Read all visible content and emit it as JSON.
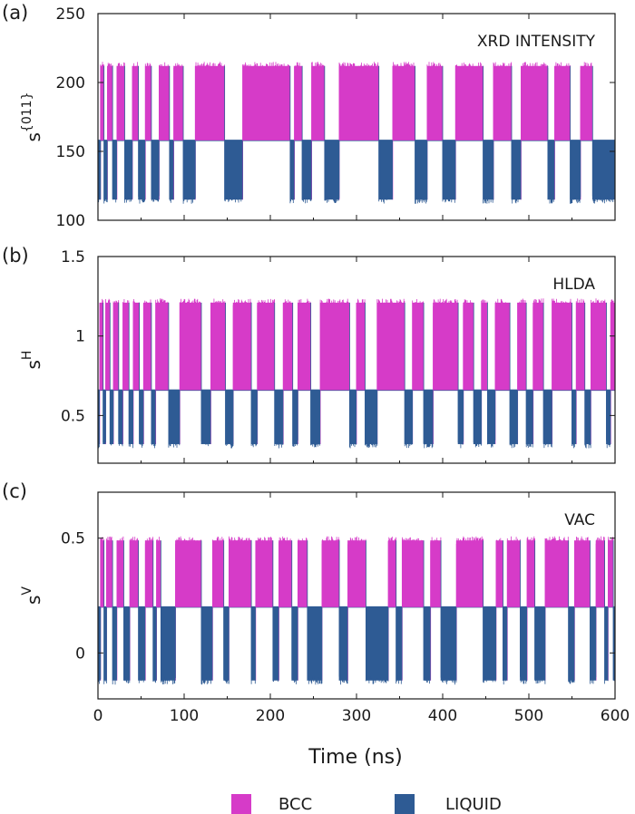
{
  "colors": {
    "bcc": "#d63bc8",
    "liquid": "#2e5b94",
    "axis": "#1a1a1a"
  },
  "xlabel": "Time (ns)",
  "legend": [
    {
      "name": "BCC",
      "color": "#d63bc8"
    },
    {
      "name": "LIQUID",
      "color": "#2e5b94"
    }
  ],
  "chart_data": [
    {
      "type": "area",
      "panel": "(a)",
      "annotation": "XRD INTENSITY",
      "ylabel": {
        "base": "s",
        "sup": "{011}"
      },
      "xlim": [
        0,
        600
      ],
      "ylim": [
        100,
        250
      ],
      "xticks": [
        0,
        100,
        200,
        300,
        400,
        500,
        600
      ],
      "yticks": [
        100,
        150,
        200,
        250
      ],
      "baseline": 158,
      "series": [
        {
          "name": "BCC",
          "level": 212,
          "intervals": [
            [
              3,
              7
            ],
            [
              11,
              17
            ],
            [
              22,
              31
            ],
            [
              40,
              47
            ],
            [
              55,
              62
            ],
            [
              71,
              83
            ],
            [
              88,
              99
            ],
            [
              113,
              147
            ],
            [
              168,
              223
            ],
            [
              228,
              237
            ],
            [
              248,
              263
            ],
            [
              280,
              326
            ],
            [
              342,
              368
            ],
            [
              382,
              400
            ],
            [
              415,
              447
            ],
            [
              459,
              480
            ],
            [
              491,
              522
            ],
            [
              530,
              548
            ],
            [
              560,
              574
            ]
          ]
        },
        {
          "name": "LIQUID",
          "level": 115,
          "intervals": [
            [
              0,
              3
            ],
            [
              7,
              11
            ],
            [
              17,
              22
            ],
            [
              31,
              40
            ],
            [
              47,
              55
            ],
            [
              62,
              71
            ],
            [
              83,
              88
            ],
            [
              99,
              113
            ],
            [
              147,
              168
            ],
            [
              223,
              228
            ],
            [
              237,
              248
            ],
            [
              263,
              280
            ],
            [
              326,
              342
            ],
            [
              368,
              382
            ],
            [
              400,
              415
            ],
            [
              447,
              459
            ],
            [
              480,
              491
            ],
            [
              522,
              530
            ],
            [
              548,
              560
            ],
            [
              574,
              600
            ]
          ]
        }
      ]
    },
    {
      "type": "area",
      "panel": "(b)",
      "annotation": "HLDA",
      "ylabel": {
        "base": "s",
        "sup": "H"
      },
      "xlim": [
        0,
        600
      ],
      "ylim": [
        0.2,
        1.5
      ],
      "xticks": [
        0,
        100,
        200,
        300,
        400,
        500,
        600
      ],
      "yticks": [
        0.5,
        1,
        1.5
      ],
      "yticklabels": [
        "0.5",
        "1",
        "1.5"
      ],
      "baseline": 0.66,
      "series": [
        {
          "name": "BCC",
          "level": 1.21,
          "intervals": [
            [
              2,
              6
            ],
            [
              9,
              14
            ],
            [
              18,
              24
            ],
            [
              29,
              36
            ],
            [
              41,
              48
            ],
            [
              53,
              62
            ],
            [
              67,
              82
            ],
            [
              95,
              120
            ],
            [
              131,
              148
            ],
            [
              157,
              178
            ],
            [
              185,
              205
            ],
            [
              215,
              226
            ],
            [
              232,
              247
            ],
            [
              258,
              292
            ],
            [
              300,
              310
            ],
            [
              324,
              356
            ],
            [
              365,
              378
            ],
            [
              389,
              418
            ],
            [
              424,
              436
            ],
            [
              445,
              452
            ],
            [
              461,
              478
            ],
            [
              487,
              497
            ],
            [
              505,
              517
            ],
            [
              527,
              550
            ],
            [
              555,
              565
            ],
            [
              572,
              590
            ],
            [
              595,
              600
            ]
          ]
        },
        {
          "name": "LIQUID",
          "level": 0.32,
          "intervals": [
            [
              0,
              2
            ],
            [
              6,
              9
            ],
            [
              14,
              18
            ],
            [
              24,
              29
            ],
            [
              36,
              41
            ],
            [
              48,
              53
            ],
            [
              62,
              67
            ],
            [
              82,
              95
            ],
            [
              120,
              131
            ],
            [
              148,
              157
            ],
            [
              178,
              185
            ],
            [
              205,
              215
            ],
            [
              226,
              232
            ],
            [
              247,
              258
            ],
            [
              292,
              300
            ],
            [
              310,
              324
            ],
            [
              356,
              365
            ],
            [
              378,
              389
            ],
            [
              418,
              424
            ],
            [
              436,
              445
            ],
            [
              452,
              461
            ],
            [
              478,
              487
            ],
            [
              497,
              505
            ],
            [
              517,
              527
            ],
            [
              550,
              555
            ],
            [
              565,
              572
            ],
            [
              590,
              595
            ]
          ]
        }
      ]
    },
    {
      "type": "area",
      "panel": "(c)",
      "annotation": "VAC",
      "ylabel": {
        "base": "s",
        "sup": "V"
      },
      "xlim": [
        0,
        600
      ],
      "ylim": [
        -0.2,
        0.7
      ],
      "xticks": [
        0,
        100,
        200,
        300,
        400,
        500,
        600
      ],
      "yticks": [
        0,
        0.5
      ],
      "yticklabels": [
        "0",
        "0.5"
      ],
      "baseline": 0.2,
      "series": [
        {
          "name": "BCC",
          "level": 0.49,
          "intervals": [
            [
              3,
              7
            ],
            [
              10,
              17
            ],
            [
              22,
              30
            ],
            [
              37,
              47
            ],
            [
              55,
              64
            ],
            [
              68,
              73
            ],
            [
              90,
              120
            ],
            [
              133,
              146
            ],
            [
              152,
              178
            ],
            [
              183,
              203
            ],
            [
              210,
              225
            ],
            [
              232,
              243
            ],
            [
              260,
              280
            ],
            [
              290,
              311
            ],
            [
              337,
              346
            ],
            [
              353,
              378
            ],
            [
              386,
              398
            ],
            [
              416,
              447
            ],
            [
              462,
              470
            ],
            [
              475,
              490
            ],
            [
              498,
              507
            ],
            [
              519,
              546
            ],
            [
              553,
              571
            ],
            [
              578,
              588
            ],
            [
              592,
              598
            ]
          ]
        },
        {
          "name": "LIQUID",
          "level": -0.12,
          "intervals": [
            [
              0,
              3
            ],
            [
              7,
              10
            ],
            [
              17,
              22
            ],
            [
              30,
              37
            ],
            [
              47,
              55
            ],
            [
              64,
              68
            ],
            [
              73,
              90
            ],
            [
              120,
              133
            ],
            [
              146,
              152
            ],
            [
              178,
              183
            ],
            [
              203,
              210
            ],
            [
              225,
              232
            ],
            [
              243,
              260
            ],
            [
              280,
              290
            ],
            [
              311,
              337
            ],
            [
              346,
              353
            ],
            [
              378,
              386
            ],
            [
              398,
              416
            ],
            [
              447,
              462
            ],
            [
              470,
              475
            ],
            [
              490,
              498
            ],
            [
              507,
              519
            ],
            [
              546,
              553
            ],
            [
              571,
              578
            ],
            [
              588,
              592
            ],
            [
              598,
              600
            ]
          ]
        }
      ]
    }
  ]
}
